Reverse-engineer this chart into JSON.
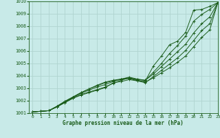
{
  "title": "Graphe pression niveau de la mer (hPa)",
  "bg_color": "#c8eae8",
  "grid_color": "#b0d4d0",
  "line_color": "#1a5c1a",
  "xlim": [
    -0.5,
    23
  ],
  "ylim": [
    1001,
    1010
  ],
  "yticks": [
    1001,
    1002,
    1003,
    1004,
    1005,
    1006,
    1007,
    1008,
    1009,
    1010
  ],
  "xticks": [
    0,
    1,
    2,
    3,
    4,
    5,
    6,
    7,
    8,
    9,
    10,
    11,
    12,
    13,
    14,
    15,
    16,
    17,
    18,
    19,
    20,
    21,
    22,
    23
  ],
  "lines": [
    [
      1001.1,
      1001.15,
      1001.2,
      1001.5,
      1001.85,
      1002.2,
      1002.45,
      1002.65,
      1002.85,
      1003.05,
      1003.45,
      1003.55,
      1003.7,
      1003.6,
      1003.6,
      1004.8,
      1005.6,
      1006.5,
      1006.8,
      1007.5,
      1009.3,
      1009.35,
      1009.6,
      1009.9
    ],
    [
      1001.1,
      1001.15,
      1001.2,
      1001.5,
      1001.85,
      1002.2,
      1002.5,
      1002.7,
      1002.9,
      1003.1,
      1003.4,
      1003.65,
      1003.85,
      1003.7,
      1003.65,
      1004.3,
      1005.0,
      1005.8,
      1006.45,
      1007.2,
      1008.4,
      1008.95,
      1009.35,
      1009.9
    ],
    [
      1001.1,
      1001.15,
      1001.2,
      1001.5,
      1001.9,
      1002.25,
      1002.6,
      1002.85,
      1003.1,
      1003.3,
      1003.55,
      1003.75,
      1003.9,
      1003.75,
      1003.65,
      1004.15,
      1004.75,
      1005.35,
      1005.95,
      1006.55,
      1007.45,
      1008.2,
      1008.75,
      1009.9
    ],
    [
      1001.1,
      1001.15,
      1001.2,
      1001.55,
      1001.95,
      1002.3,
      1002.65,
      1002.95,
      1003.2,
      1003.45,
      1003.6,
      1003.7,
      1003.8,
      1003.6,
      1003.45,
      1003.95,
      1004.45,
      1004.95,
      1005.45,
      1006.05,
      1006.85,
      1007.65,
      1008.2,
      1009.9
    ],
    [
      1001.1,
      1001.15,
      1001.2,
      1001.55,
      1001.95,
      1002.3,
      1002.65,
      1002.95,
      1003.25,
      1003.5,
      1003.65,
      1003.75,
      1003.85,
      1003.65,
      1003.5,
      1003.85,
      1004.25,
      1004.65,
      1005.1,
      1005.6,
      1006.35,
      1007.1,
      1007.7,
      1009.9
    ]
  ]
}
